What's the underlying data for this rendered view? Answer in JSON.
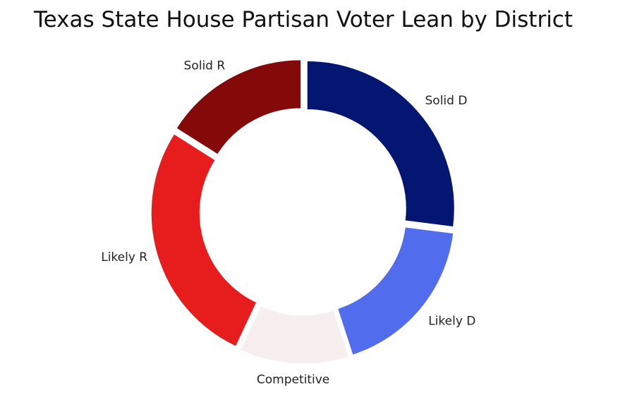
{
  "chart_data": {
    "type": "pie",
    "style": "donut",
    "title": "Texas State House Partisan Voter Lean by District",
    "categories": [
      "Solid D",
      "Likely D",
      "Competitive",
      "Likely R",
      "Solid R"
    ],
    "values": [
      27,
      18,
      12,
      27,
      16
    ],
    "unit": "percent of districts",
    "colors": [
      "#021672",
      "#526cee",
      "#f7eef0",
      "#e61c1d",
      "#840a0a"
    ],
    "legend": "none (labels outside slices)"
  }
}
